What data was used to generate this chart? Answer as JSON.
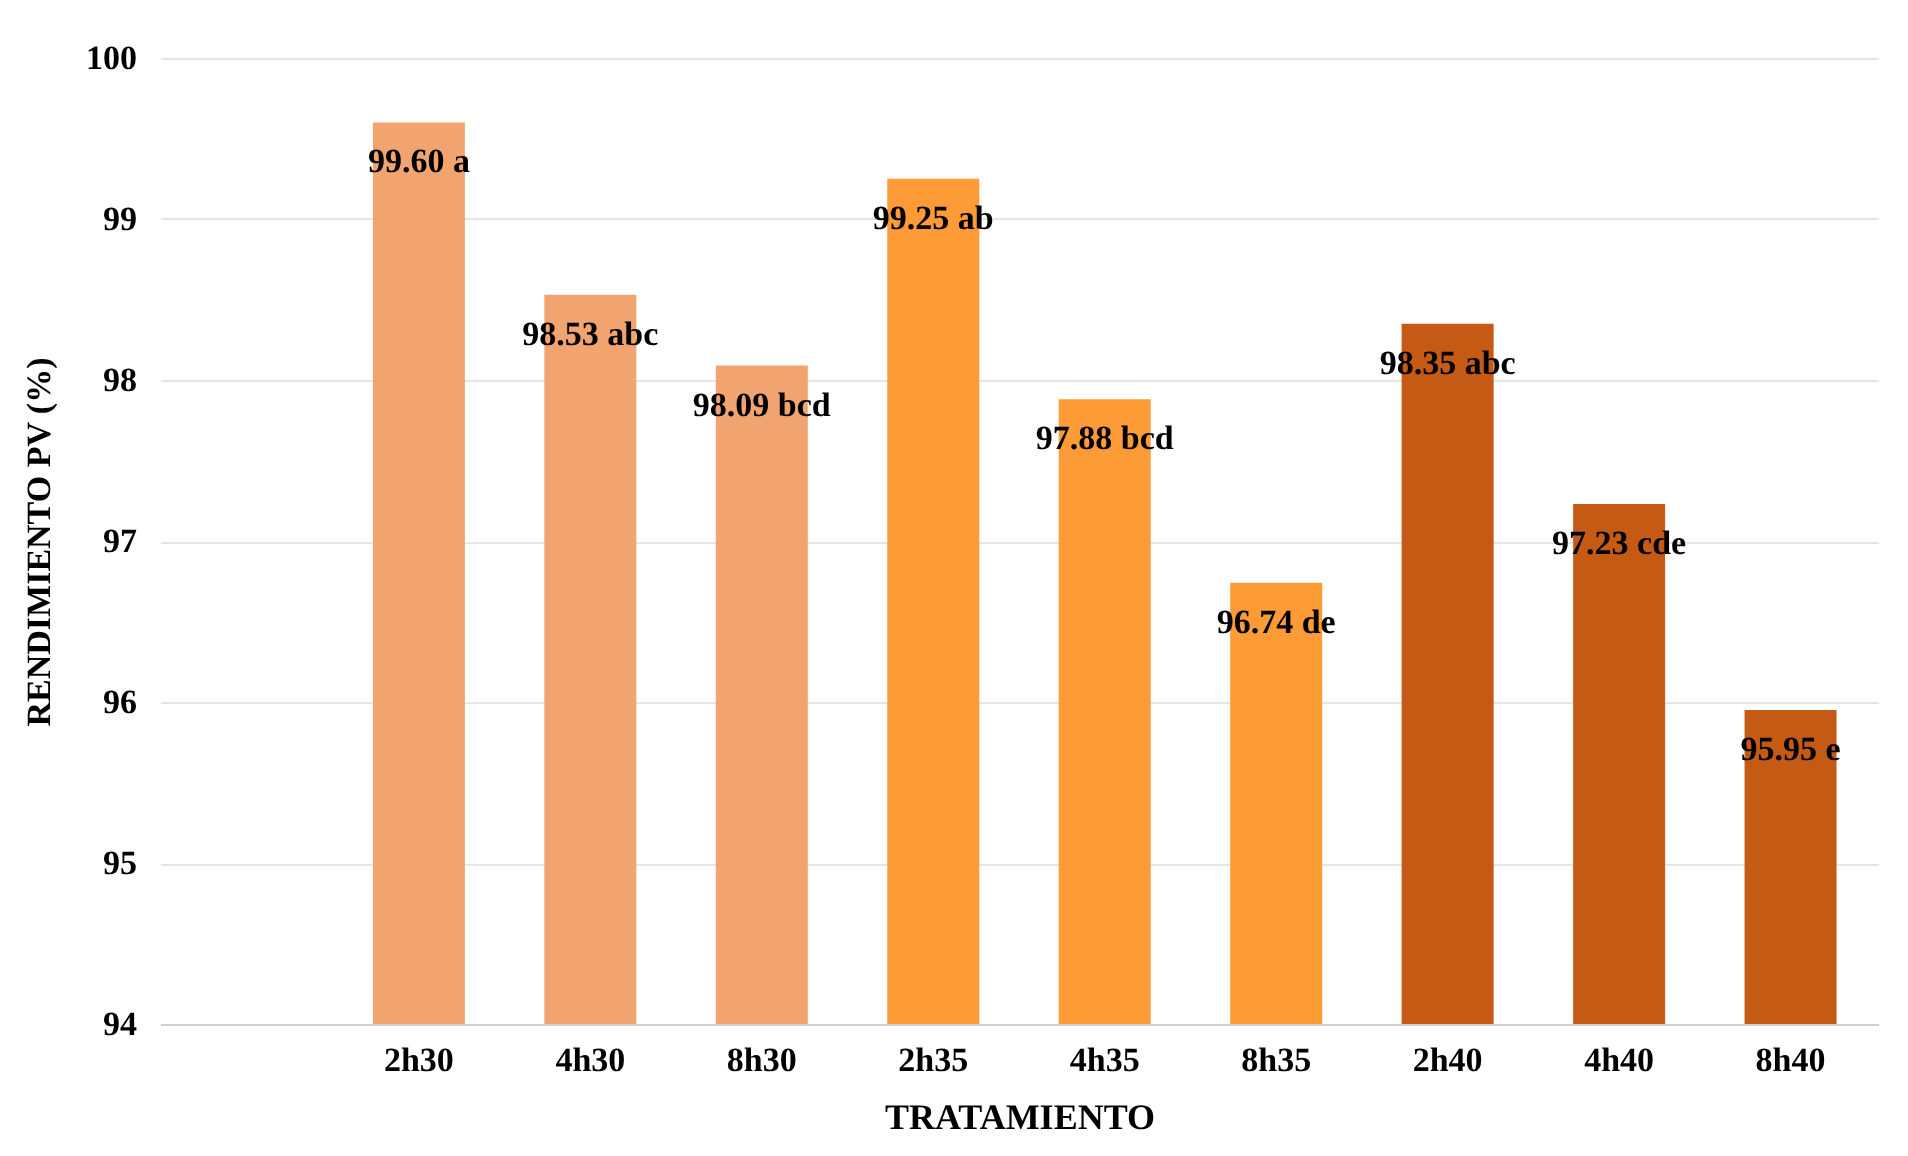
{
  "chart_data": {
    "type": "bar",
    "xlabel": "TRATAMIENTO",
    "ylabel": "RENDIMIENTO PV (%)",
    "categories": [
      null,
      "2h30",
      "4h30",
      "8h30",
      "2h35",
      "4h35",
      "8h35",
      "2h40",
      "4h40",
      "8h40"
    ],
    "values": [
      null,
      99.6,
      98.53,
      98.09,
      99.25,
      97.88,
      96.74,
      98.35,
      97.23,
      95.95
    ],
    "value_labels": [
      null,
      "99.60 a",
      "98.53 abc",
      "98.09 bcd",
      "99.25 ab",
      "97.88 bcd",
      "96.74 de",
      "98.35 abc",
      "97.23 cde",
      "95.95 e"
    ],
    "colors": [
      "#f1a46f",
      "#f1a46f",
      "#f1a46f",
      "#f1a46f",
      "#fd9b37",
      "#fd9b37",
      "#fd9b37",
      "#c55a15",
      "#c55a15",
      "#c55a15"
    ],
    "ylim": [
      94,
      100
    ],
    "yticks": [
      94,
      95,
      96,
      97,
      98,
      99,
      100
    ],
    "grid": "y"
  }
}
